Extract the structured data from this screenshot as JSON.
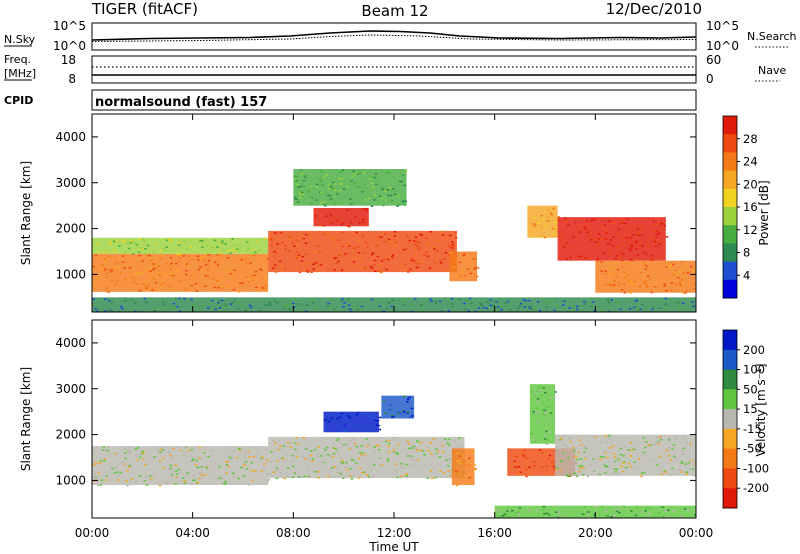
{
  "header": {
    "radar_title": "TIGER (fitACF)",
    "beam": "Beam 12",
    "date": "12/Dec/2010"
  },
  "top_panels": {
    "nsky": {
      "label": "N.Sky",
      "ytick_top": "10^5",
      "ytick_bottom": "10^0",
      "right_label": "N.Search",
      "right_ytick_top": "10^5",
      "right_ytick_bottom": "10^0"
    },
    "freq": {
      "label_line1": "Freq.",
      "label_line2": "[MHz]",
      "ytick_top": "18",
      "ytick_bottom": "8",
      "right_label": "Nave",
      "right_ytick_top": "60",
      "right_ytick_bottom": "0"
    },
    "cpid": {
      "label": "CPID",
      "mode_text": "normalsound (fast) 157"
    }
  },
  "chart_data": [
    {
      "type": "heatmap",
      "name": "power",
      "ylabel": "Slant Range [km]",
      "ylim": [
        180,
        4500
      ],
      "yticks": [
        "1000",
        "2000",
        "3000",
        "4000"
      ],
      "colorbar_label": "Power [dB]",
      "colorbar_ticks": [
        "4",
        "8",
        "12",
        "16",
        "20",
        "24",
        "28"
      ],
      "colors": [
        "#0000dd",
        "#1e4fd0",
        "#2f8a4f",
        "#48ad40",
        "#9bd23c",
        "#f0d320",
        "#f5a623",
        "#f47a18",
        "#ef4a12",
        "#e01a0a"
      ],
      "bands": [
        {
          "x0": 0.0,
          "x1": 7.0,
          "y0": 620,
          "y1": 1450,
          "level": 7
        },
        {
          "x0": 0.0,
          "x1": 7.0,
          "y0": 1450,
          "y1": 1800,
          "level": 4
        },
        {
          "x0": 7.0,
          "x1": 14.5,
          "y0": 1050,
          "y1": 1950,
          "level": 8
        },
        {
          "x0": 8.8,
          "x1": 11.0,
          "y0": 2050,
          "y1": 2450,
          "level": 9
        },
        {
          "x0": 8.0,
          "x1": 12.5,
          "y0": 2500,
          "y1": 3300,
          "level": 3
        },
        {
          "x0": 14.2,
          "x1": 15.3,
          "y0": 850,
          "y1": 1500,
          "level": 7
        },
        {
          "x0": 17.3,
          "x1": 18.5,
          "y0": 1800,
          "y1": 2500,
          "level": 6
        },
        {
          "x0": 18.5,
          "x1": 22.8,
          "y0": 1300,
          "y1": 2250,
          "level": 9
        },
        {
          "x0": 20.0,
          "x1": 24.0,
          "y0": 600,
          "y1": 1300,
          "level": 7
        },
        {
          "x0": 0.0,
          "x1": 24.0,
          "y0": 180,
          "y1": 500,
          "level": 2
        }
      ]
    },
    {
      "type": "heatmap",
      "name": "velocity",
      "xlabel": "Time UT",
      "ylabel": "Slant Range [km]",
      "ylim": [
        180,
        4500
      ],
      "xlim": [
        0,
        24
      ],
      "xticks": [
        "00:00",
        "04:00",
        "08:00",
        "12:00",
        "16:00",
        "20:00",
        "00:00"
      ],
      "yticks": [
        "1000",
        "2000",
        "3000",
        "4000"
      ],
      "colorbar_label": "Velocity [m s⁻¹]",
      "colorbar_ticks": [
        "200",
        "100",
        "50",
        "15",
        "-15",
        "-50",
        "-100",
        "-200"
      ],
      "colors": [
        "#0018c8",
        "#1c58c8",
        "#2e8a3e",
        "#60c640",
        "#b8b8b0",
        "#f5a623",
        "#f47a18",
        "#ef4a12",
        "#e01a0a"
      ],
      "bands": [
        {
          "x0": 0.0,
          "x1": 7.0,
          "y0": 900,
          "y1": 1750,
          "level": 4
        },
        {
          "x0": 7.0,
          "x1": 14.8,
          "y0": 1050,
          "y1": 1950,
          "level": 4
        },
        {
          "x0": 9.2,
          "x1": 11.4,
          "y0": 2050,
          "y1": 2500,
          "level": 0
        },
        {
          "x0": 11.5,
          "x1": 12.8,
          "y0": 2350,
          "y1": 2850,
          "level": 1
        },
        {
          "x0": 14.3,
          "x1": 15.2,
          "y0": 900,
          "y1": 1700,
          "level": 6
        },
        {
          "x0": 17.4,
          "x1": 18.4,
          "y0": 1800,
          "y1": 3100,
          "level": 3
        },
        {
          "x0": 16.5,
          "x1": 19.2,
          "y0": 1100,
          "y1": 1700,
          "level": 7
        },
        {
          "x0": 18.4,
          "x1": 24.0,
          "y0": 1100,
          "y1": 2000,
          "level": 4
        },
        {
          "x0": 16.0,
          "x1": 24.0,
          "y0": 180,
          "y1": 450,
          "level": 3
        }
      ]
    }
  ]
}
